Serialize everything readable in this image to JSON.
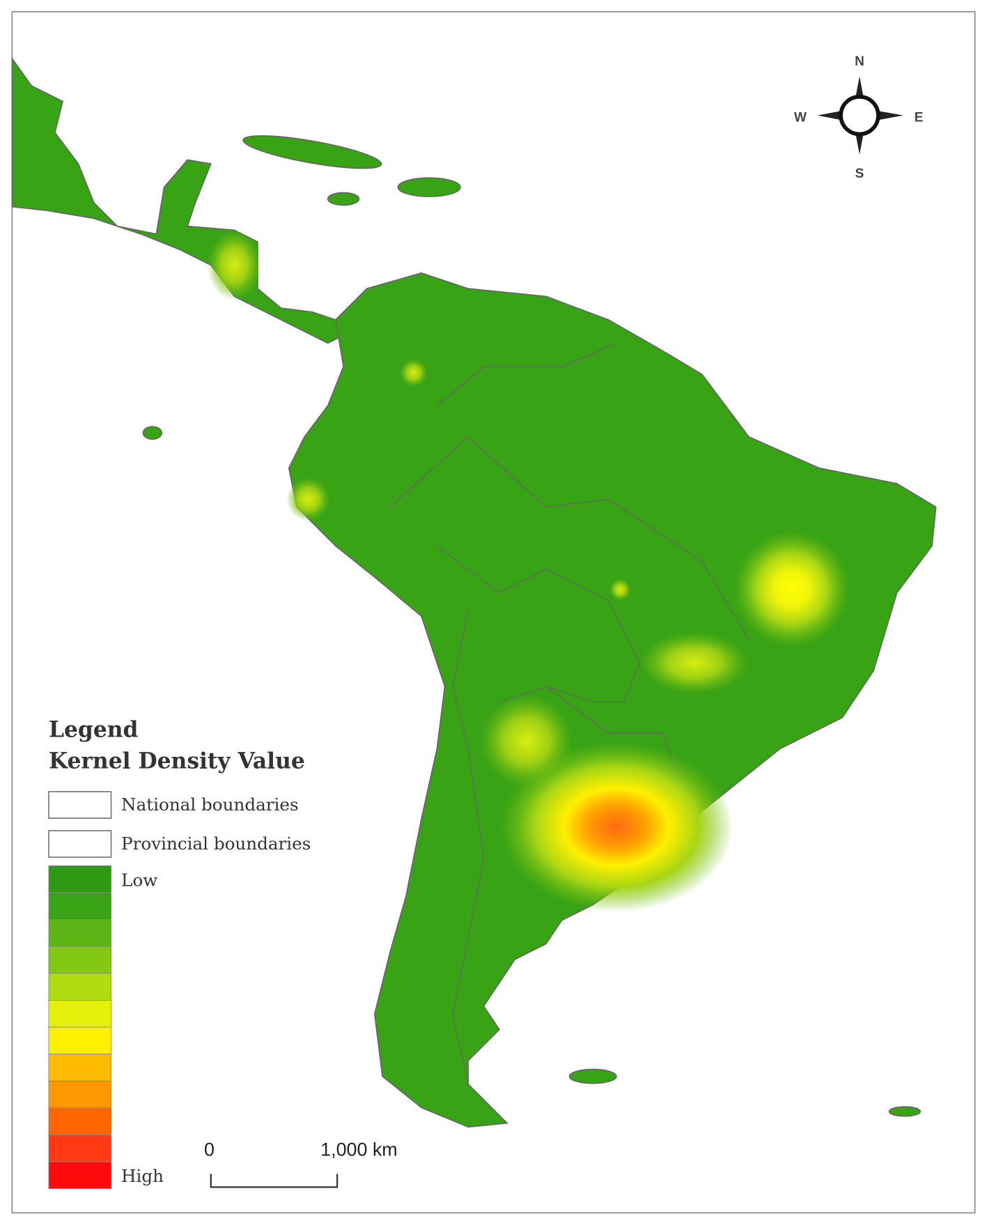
{
  "compass": {
    "north": "N",
    "south": "S",
    "west": "W",
    "east": "E"
  },
  "legend": {
    "title": "Legend",
    "subtitle": "Kernel Density Value",
    "boundaries": [
      "National boundaries",
      "Provincial boundaries"
    ],
    "low": "Low",
    "high": "High",
    "ramp": [
      "#2e9a12",
      "#3aa514",
      "#5cb516",
      "#84c816",
      "#b2dc12",
      "#e2f00c",
      "#fff000",
      "#ffbb00",
      "#ff9800",
      "#ff6600",
      "#ff3a12",
      "#ff0a0a"
    ]
  },
  "scale_bar": {
    "start": "0",
    "end": "1,000 km"
  }
}
